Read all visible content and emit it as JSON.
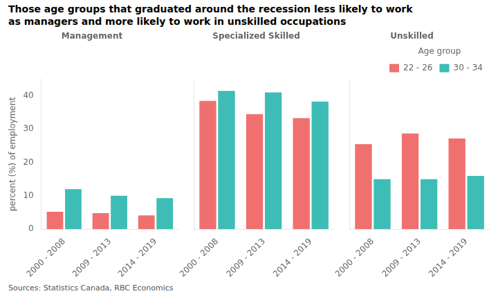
{
  "title": [
    "Those age groups that graduated around the recession less likely to work",
    "as managers and more likely to work in unskilled occupations"
  ],
  "annotations": [
    "Sources: Statistics Canada, RBC Economics"
  ],
  "chart_data": [
    {
      "type": "bar",
      "title": "Management",
      "ylabel": "percent (%) of employment",
      "categories": [
        "2000 - 2008",
        "2009 - 2013",
        "2014 - 2019"
      ],
      "series": [
        {
          "name": "22 - 26",
          "color": "#F07070",
          "values": [
            5.2,
            4.8,
            4.1
          ]
        },
        {
          "name": "30 - 34",
          "color": "#3DBDB5",
          "values": [
            12.0,
            10.0,
            9.3
          ]
        }
      ],
      "ylim": [
        0,
        45
      ],
      "yticks": [
        0,
        10,
        20,
        30,
        40
      ],
      "grid": false
    },
    {
      "type": "bar",
      "title": "Specialized Skilled",
      "categories": [
        "2000 - 2008",
        "2009 - 2013",
        "2014 - 2019"
      ],
      "series": [
        {
          "name": "22 - 26",
          "color": "#F07070",
          "values": [
            38.5,
            34.5,
            33.3
          ]
        },
        {
          "name": "30 - 34",
          "color": "#3DBDB5",
          "values": [
            41.5,
            41.0,
            38.3
          ]
        }
      ],
      "ylim": [
        0,
        45
      ],
      "yticks": [
        0,
        10,
        20,
        30,
        40
      ],
      "grid": false,
      "tick_labels": "x"
    },
    {
      "type": "bar",
      "title": "Unskilled",
      "categories": [
        "2000 - 2008",
        "2009 - 2013",
        "2014 - 2019"
      ],
      "series": [
        {
          "name": "22 - 26",
          "color": "#F07070",
          "values": [
            25.5,
            28.7,
            27.2
          ]
        },
        {
          "name": "30 - 34",
          "color": "#3DBDB5",
          "values": [
            15.0,
            15.0,
            16.0
          ]
        }
      ],
      "ylim": [
        0,
        45
      ],
      "yticks": [
        0,
        10,
        20,
        30,
        40
      ],
      "grid": false,
      "tick_labels": "x",
      "legend": "upper right",
      "legend_title": "Age group"
    }
  ]
}
